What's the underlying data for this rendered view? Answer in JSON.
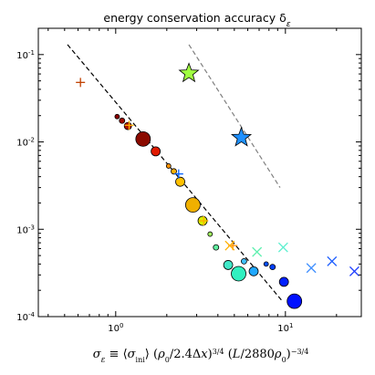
{
  "chart_data": {
    "type": "scatter",
    "title": "energy conservation accuracy δ_ε",
    "title_parts": {
      "main": "energy conservation accuracy δ",
      "sub": "ε"
    },
    "xlabel": "σ_ε ≡ ⟨σ_ini⟩ (ρ_0/2.4Δx)^{3/4} (L/2880ρ_0)^{-3/4}",
    "xscale": "log",
    "yscale": "log",
    "xlim": [
      0.35,
      28
    ],
    "ylim": [
      0.0001,
      0.2
    ],
    "x_ticks": [
      {
        "value": 1,
        "base": "10",
        "exp": "0"
      },
      {
        "value": 10,
        "base": "10",
        "exp": "1"
      }
    ],
    "y_ticks": [
      {
        "value": 0.0001,
        "base": "10",
        "exp": "-4"
      },
      {
        "value": 0.001,
        "base": "10",
        "exp": "-3"
      },
      {
        "value": 0.01,
        "base": "10",
        "exp": "-2"
      },
      {
        "value": 0.1,
        "base": "10",
        "exp": "-1"
      }
    ],
    "grid": false,
    "legend": "none",
    "reference_lines": [
      {
        "name": "black dashed",
        "color": "#000000",
        "points": [
          [
            0.52,
            0.13
          ],
          [
            9.6,
            0.00015
          ]
        ]
      },
      {
        "name": "grey dashed",
        "color": "#808080",
        "points": [
          [
            2.7,
            0.13
          ],
          [
            9.3,
            0.003
          ]
        ]
      }
    ],
    "circles": [
      {
        "x": 1.02,
        "y": 0.0195,
        "r": 2.5,
        "color": "#8b0000"
      },
      {
        "x": 1.09,
        "y": 0.0175,
        "r": 3,
        "color": "#9e0b00"
      },
      {
        "x": 1.18,
        "y": 0.0152,
        "r": 4,
        "color": "#b01300"
      },
      {
        "x": 1.45,
        "y": 0.0108,
        "r": 8,
        "color": "#8b0a00"
      },
      {
        "x": 1.72,
        "y": 0.0078,
        "r": 5,
        "color": "#e01a00"
      },
      {
        "x": 2.05,
        "y": 0.0053,
        "r": 2.5,
        "color": "#ff9400"
      },
      {
        "x": 2.2,
        "y": 0.0046,
        "r": 3,
        "color": "#ffb000"
      },
      {
        "x": 2.4,
        "y": 0.0035,
        "r": 5,
        "color": "#ffc000"
      },
      {
        "x": 2.85,
        "y": 0.0019,
        "r": 8,
        "color": "#f0b000"
      },
      {
        "x": 3.25,
        "y": 0.00125,
        "r": 5,
        "color": "#d8f000"
      },
      {
        "x": 3.6,
        "y": 0.00088,
        "r": 2.5,
        "color": "#a0f060"
      },
      {
        "x": 3.9,
        "y": 0.00062,
        "r": 3,
        "color": "#60f0a0"
      },
      {
        "x": 4.6,
        "y": 0.00039,
        "r": 5,
        "color": "#40e8c8"
      },
      {
        "x": 5.3,
        "y": 0.00031,
        "r": 8,
        "color": "#30f0c0"
      },
      {
        "x": 5.7,
        "y": 0.00043,
        "r": 3,
        "color": "#40c0ff"
      },
      {
        "x": 6.5,
        "y": 0.00033,
        "r": 5,
        "color": "#20a8ff"
      },
      {
        "x": 7.7,
        "y": 0.0004,
        "r": 2.5,
        "color": "#0050ff"
      },
      {
        "x": 8.4,
        "y": 0.00037,
        "r": 3,
        "color": "#0040ff"
      },
      {
        "x": 9.8,
        "y": 0.00025,
        "r": 5,
        "color": "#0020ff"
      },
      {
        "x": 11.3,
        "y": 0.00015,
        "r": 8,
        "color": "#0010ff"
      }
    ],
    "stars": [
      {
        "x": 2.7,
        "y": 0.061,
        "color": "#a0ff40"
      },
      {
        "x": 5.5,
        "y": 0.0112,
        "color": "#1e90ff"
      }
    ],
    "plus_markers": [
      {
        "x": 0.62,
        "y": 0.048,
        "color": "#c04000"
      },
      {
        "x": 1.2,
        "y": 0.0155,
        "color": "#ffb000"
      },
      {
        "x": 2.35,
        "y": 0.0043,
        "color": "#0060ff"
      },
      {
        "x": 3.3,
        "y": 0.00125,
        "color": "#ffb000"
      },
      {
        "x": 4.9,
        "y": 0.00065,
        "color": "#ff9000"
      }
    ],
    "x_markers": [
      {
        "x": 4.7,
        "y": 0.00065,
        "color": "#ffb000"
      },
      {
        "x": 6.8,
        "y": 0.00055,
        "color": "#60f0b0"
      },
      {
        "x": 9.7,
        "y": 0.00062,
        "color": "#60f0d0"
      },
      {
        "x": 14.2,
        "y": 0.00036,
        "color": "#4090ff"
      },
      {
        "x": 18.8,
        "y": 0.00043,
        "color": "#2060ff"
      },
      {
        "x": 25.5,
        "y": 0.00033,
        "color": "#2040ff"
      }
    ]
  }
}
